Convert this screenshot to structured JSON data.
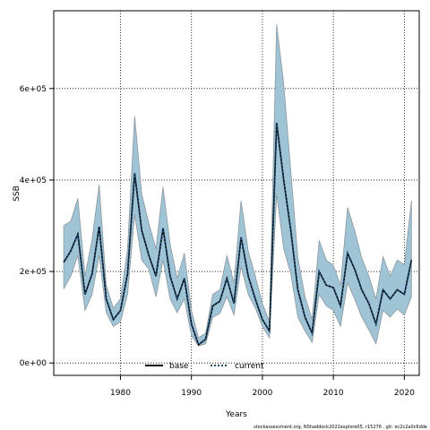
{
  "chart_data": {
    "type": "line",
    "xlabel": "Years",
    "ylabel": "SSB",
    "xlim": [
      1970.6,
      2022.1
    ],
    "ylim": [
      -27000,
      770000
    ],
    "xticks": [
      1980,
      1990,
      2000,
      2010,
      2020
    ],
    "yticks": [
      0,
      200000,
      400000,
      600000
    ],
    "ytick_labels": [
      "0e+00",
      "2e+05",
      "4e+05",
      "6e+05"
    ],
    "grid": true,
    "legend_position": "bottom-center",
    "band_color": "#9fc4d6",
    "band_edge_color": "#8d979e",
    "x": [
      1972,
      1973,
      1974,
      1975,
      1976,
      1977,
      1978,
      1979,
      1980,
      1981,
      1982,
      1983,
      1984,
      1985,
      1986,
      1987,
      1988,
      1989,
      1990,
      1991,
      1992,
      1993,
      1994,
      1995,
      1996,
      1997,
      1998,
      1999,
      2000,
      2001,
      2002,
      2003,
      2004,
      2005,
      2006,
      2007,
      2008,
      2009,
      2010,
      2011,
      2012,
      2013,
      2014,
      2015,
      2016,
      2017,
      2018,
      2019,
      2020,
      2021
    ],
    "series": [
      {
        "name": "base",
        "color": "#000000",
        "style": "solid",
        "values": [
          220000,
          245000,
          282000,
          150000,
          195000,
          298000,
          140000,
          95000,
          115000,
          195000,
          415000,
          290000,
          235000,
          190000,
          295000,
          190000,
          140000,
          185000,
          85000,
          40000,
          52000,
          125000,
          135000,
          185000,
          130000,
          275000,
          190000,
          140000,
          95000,
          70000,
          525000,
          400000,
          290000,
          160000,
          100000,
          65000,
          200000,
          170000,
          165000,
          125000,
          240000,
          205000,
          160000,
          130000,
          85000,
          160000,
          140000,
          160000,
          150000,
          225000
        ]
      },
      {
        "name": "current",
        "color": "#1f4e79",
        "style": "dotted",
        "values": [
          220000,
          245000,
          282000,
          150000,
          195000,
          298000,
          140000,
          95000,
          115000,
          195000,
          415000,
          290000,
          235000,
          190000,
          295000,
          190000,
          140000,
          185000,
          85000,
          40000,
          52000,
          125000,
          135000,
          185000,
          130000,
          275000,
          190000,
          140000,
          95000,
          70000,
          525000,
          400000,
          290000,
          160000,
          100000,
          65000,
          200000,
          170000,
          165000,
          125000,
          240000,
          205000,
          160000,
          130000,
          85000,
          160000,
          140000,
          160000,
          150000,
          225000
        ]
      }
    ],
    "band": {
      "upper": [
        300000,
        310000,
        360000,
        190000,
        270000,
        390000,
        170000,
        120000,
        140000,
        250000,
        540000,
        370000,
        305000,
        250000,
        385000,
        260000,
        185000,
        240000,
        115000,
        55000,
        65000,
        150000,
        160000,
        235000,
        175000,
        355000,
        245000,
        190000,
        130000,
        90000,
        740000,
        610000,
        420000,
        230000,
        145000,
        95000,
        268000,
        225000,
        213000,
        170000,
        340000,
        290000,
        230000,
        190000,
        140000,
        232000,
        190000,
        225000,
        215000,
        355000
      ],
      "lower": [
        162000,
        190000,
        235000,
        115000,
        150000,
        235000,
        110000,
        80000,
        90000,
        150000,
        325000,
        225000,
        205000,
        145000,
        225000,
        140000,
        110000,
        140000,
        60000,
        37000,
        42000,
        100000,
        108000,
        145000,
        105000,
        210000,
        150000,
        120000,
        80000,
        55000,
        370000,
        250000,
        195000,
        100000,
        70000,
        45000,
        150000,
        125000,
        115000,
        80000,
        175000,
        140000,
        100000,
        72000,
        42000,
        115000,
        100000,
        118000,
        105000,
        145000
      ]
    }
  },
  "footnote": "stockassessment.org, NShaddock2021explore05, r15276 ,  git: ec2c2a0c6dde"
}
